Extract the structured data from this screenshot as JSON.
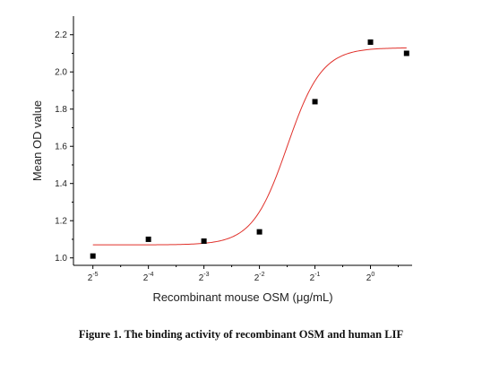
{
  "caption": "Figure 1. The binding activity of recombinant OSM and human LIF",
  "chart_data": {
    "type": "scatter",
    "xlabel": "Recombinant mouse OSM (μg/mL)",
    "ylabel": "Mean OD value",
    "x_scale": "log2",
    "x_tick_base": "2",
    "x_ticks": [
      -5,
      -4,
      -3,
      -2,
      -1,
      0
    ],
    "y_ticks": [
      "1.0",
      "1.2",
      "1.4",
      "1.6",
      "1.8",
      "2.0",
      "2.2"
    ],
    "ylim": [
      0.96,
      2.3
    ],
    "xlim_log2": [
      -5.35,
      0.75
    ],
    "grid": false,
    "points": [
      {
        "x_log2": -5.0,
        "y": 1.01
      },
      {
        "x_log2": -4.0,
        "y": 1.1
      },
      {
        "x_log2": -3.0,
        "y": 1.09
      },
      {
        "x_log2": -2.0,
        "y": 1.14
      },
      {
        "x_log2": -1.0,
        "y": 1.84
      },
      {
        "x_log2": 0.0,
        "y": 2.16
      },
      {
        "x_log2": 0.65,
        "y": 2.1
      }
    ],
    "fit_curve": {
      "model": "logistic",
      "bottom": 1.07,
      "top": 2.13,
      "midpoint_log2": -1.5,
      "slope": 3.2,
      "color": "#e0302a"
    },
    "marker_color": "#000000"
  }
}
